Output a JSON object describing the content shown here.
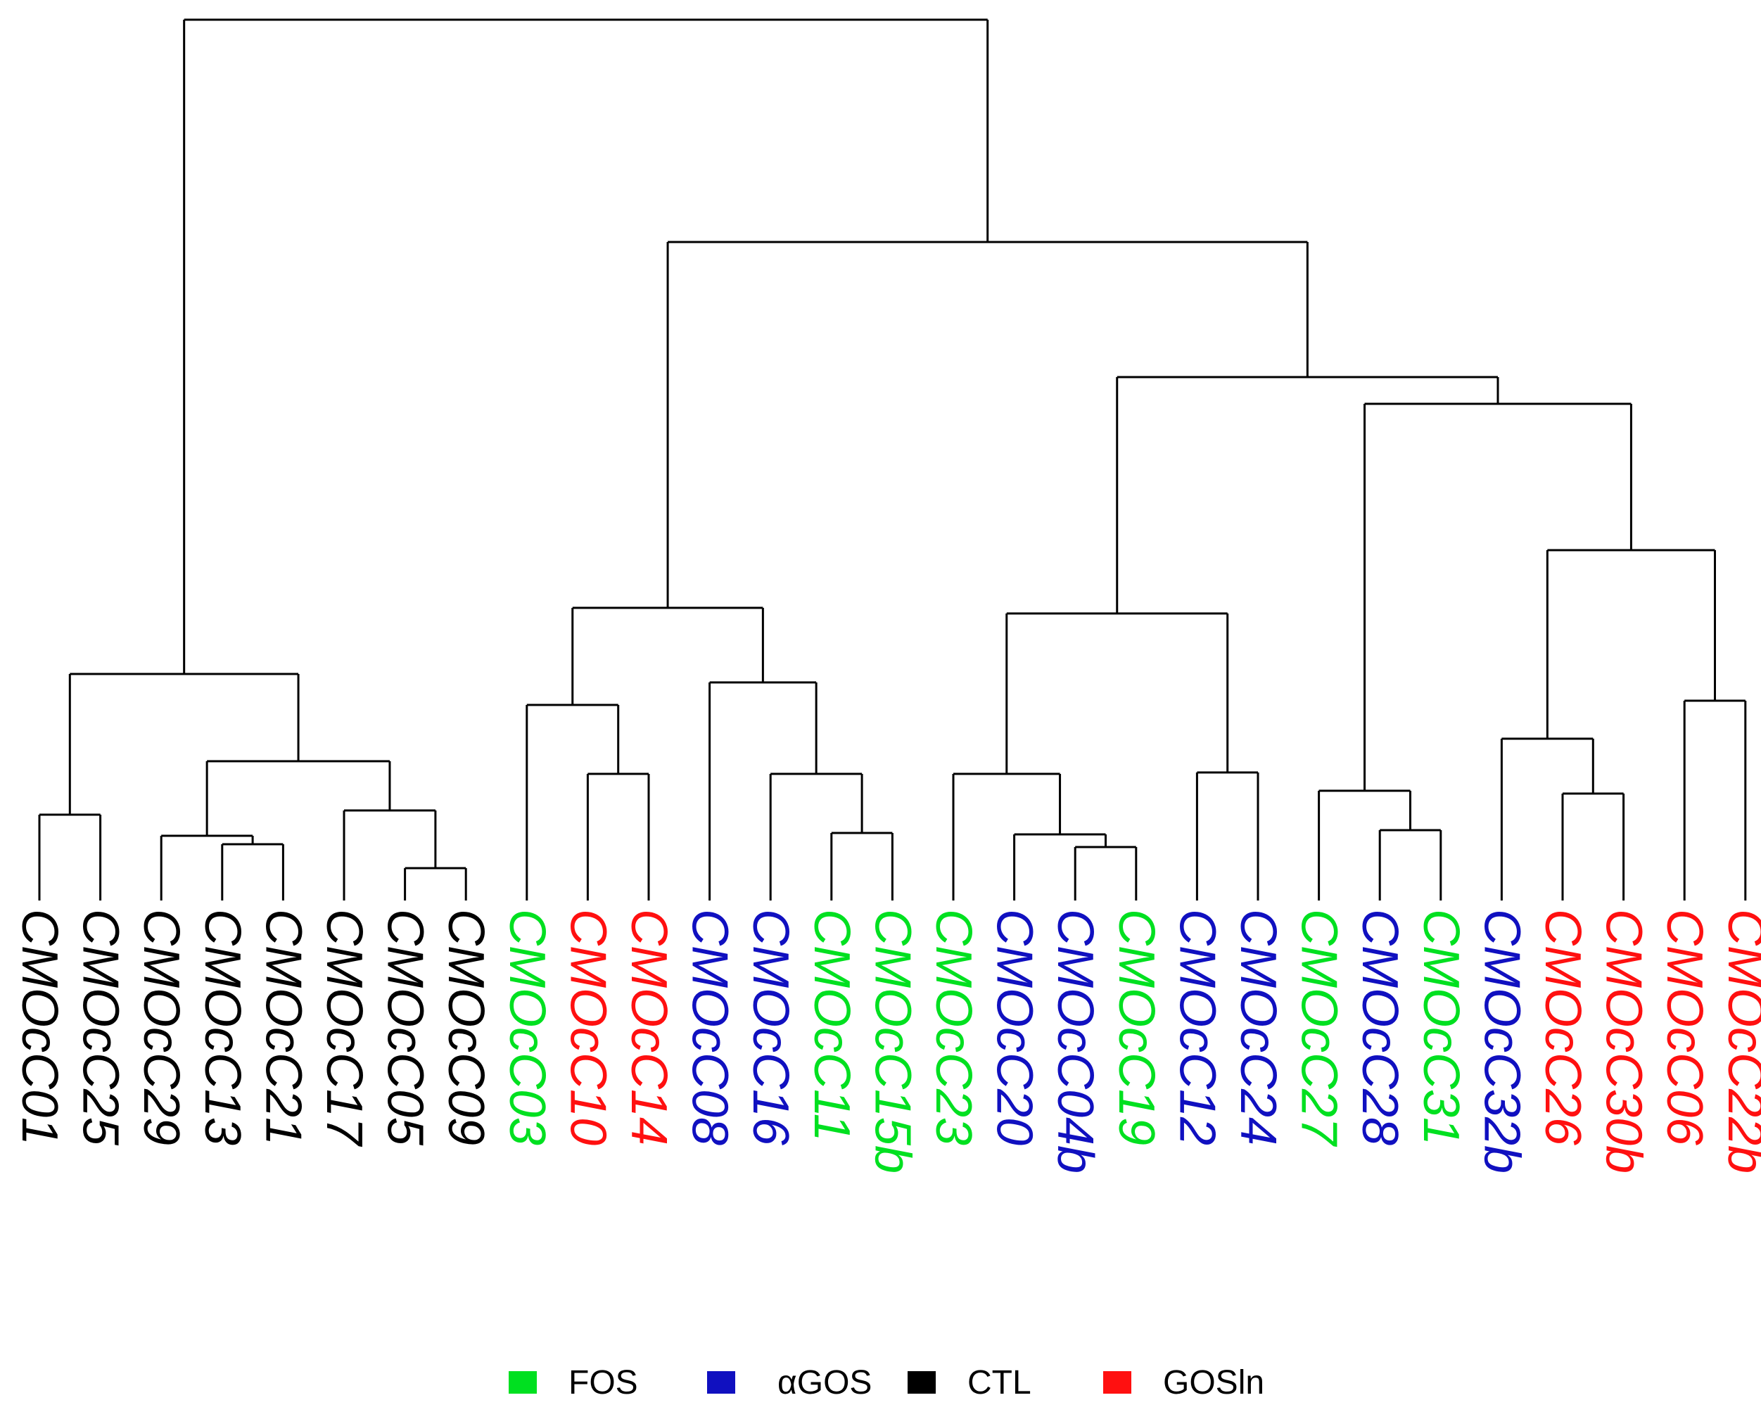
{
  "groups": {
    "FOS": {
      "label": "FOS",
      "color": "#00e020"
    },
    "aGOS": {
      "label": "αGOS",
      "color": "#1010c0"
    },
    "CTL": {
      "label": "CTL",
      "color": "#000000"
    },
    "GOSln": {
      "label": "GOSln",
      "color": "#ff1010"
    }
  },
  "legend_order": [
    "FOS",
    "aGOS",
    "CTL",
    "GOSln"
  ],
  "leaves": [
    {
      "label": "CMOcC01",
      "group": "CTL"
    },
    {
      "label": "CMOcC25",
      "group": "CTL"
    },
    {
      "label": "CMOcC29",
      "group": "CTL"
    },
    {
      "label": "CMOcC13",
      "group": "CTL"
    },
    {
      "label": "CMOcC21",
      "group": "CTL"
    },
    {
      "label": "CMOcC17",
      "group": "CTL"
    },
    {
      "label": "CMOcC05",
      "group": "CTL"
    },
    {
      "label": "CMOcC09",
      "group": "CTL"
    },
    {
      "label": "CMOcC03",
      "group": "FOS"
    },
    {
      "label": "CMOcC10",
      "group": "GOSln"
    },
    {
      "label": "CMOcC14",
      "group": "GOSln"
    },
    {
      "label": "CMOcC08",
      "group": "aGOS"
    },
    {
      "label": "CMOcC16",
      "group": "aGOS"
    },
    {
      "label": "CMOcC11",
      "group": "FOS"
    },
    {
      "label": "CMOcC15b",
      "group": "FOS"
    },
    {
      "label": "CMOcC23",
      "group": "FOS"
    },
    {
      "label": "CMOcC20",
      "group": "aGOS"
    },
    {
      "label": "CMOcC04b",
      "group": "aGOS"
    },
    {
      "label": "CMOcC19",
      "group": "FOS"
    },
    {
      "label": "CMOcC12",
      "group": "aGOS"
    },
    {
      "label": "CMOcC24",
      "group": "aGOS"
    },
    {
      "label": "CMOcC27",
      "group": "FOS"
    },
    {
      "label": "CMOcC28",
      "group": "aGOS"
    },
    {
      "label": "CMOcC31",
      "group": "FOS"
    },
    {
      "label": "CMOcC32b",
      "group": "aGOS"
    },
    {
      "label": "CMOcC26",
      "group": "GOSln"
    },
    {
      "label": "CMOcC30b",
      "group": "GOSln"
    },
    {
      "label": "CMOcC06",
      "group": "GOSln"
    },
    {
      "label": "CMOcC22b",
      "group": "GOSln"
    }
  ],
  "merge_heights": {
    "root": 1.0,
    "ctl_cluster": 0.305,
    "treated_cluster": 0.755
  }
}
